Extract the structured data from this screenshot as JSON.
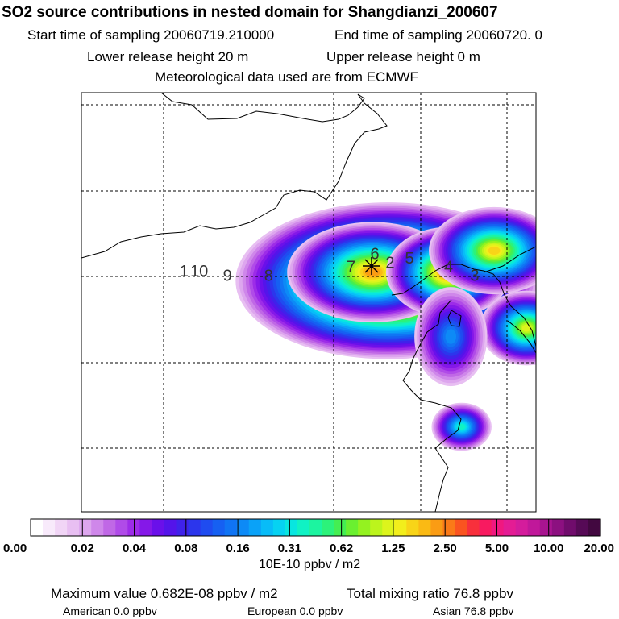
{
  "header": {
    "title": "SO2 source contributions in nested domain for Shangdianzi_200607",
    "start_time": "Start time of sampling 20060719.210000",
    "end_time": "End time of sampling 20060720.     0",
    "lower_height": "Lower release height   20 m",
    "upper_height": "Upper release height    0 m",
    "met_data": "Meteorological data used are from ECMWF"
  },
  "chart_data": {
    "type": "heatmap",
    "title": "SO2 source contributions in nested domain for Shangdianzi_200607",
    "colorbar": {
      "unit_label": "10E-10 ppbv / m2",
      "tick_labels": [
        "0.00",
        "0.02",
        "0.04",
        "0.08",
        "0.16",
        "0.31",
        "0.62",
        "1.25",
        "2.50",
        "5.00",
        "10.00",
        "20.00"
      ],
      "colors": [
        "#ffffff",
        "#f8eafb",
        "#f1d5f6",
        "#e8bff2",
        "#dda6ee",
        "#cf87ea",
        "#c068e6",
        "#b04be8",
        "#9d2ce8",
        "#8518e8",
        "#6a10ea",
        "#5414ea",
        "#3f22ea",
        "#2c36ec",
        "#1f4cf0",
        "#1660f2",
        "#1074f4",
        "#0d8af6",
        "#0aa2f8",
        "#08bcf8",
        "#06d2f2",
        "#08e6e0",
        "#10f2c4",
        "#1cf4a0",
        "#2cf27a",
        "#44ee52",
        "#6af030",
        "#94f220",
        "#bcf41c",
        "#dcf41c",
        "#f2ee1c",
        "#f8d418",
        "#faba14",
        "#fa9c14",
        "#fa7a18",
        "#fa5420",
        "#f8303c",
        "#f81a60",
        "#f01880",
        "#e41c94",
        "#d41c9c",
        "#c0189a",
        "#a81490",
        "#8c1080",
        "#700c6c",
        "#560a56",
        "#420840"
      ]
    },
    "trajectory_labels": [
      {
        "label": "1",
        "lon": 105.1,
        "lat": 40.0
      },
      {
        "label": "10",
        "lon": 105.8,
        "lat": 40.0
      },
      {
        "label": "9",
        "lon": 107.1,
        "lat": 39.9
      },
      {
        "label": "8",
        "lon": 109.0,
        "lat": 39.9
      },
      {
        "label": "7",
        "lon": 112.8,
        "lat": 40.1
      },
      {
        "label": "6",
        "lon": 113.9,
        "lat": 40.4
      },
      {
        "label": "5",
        "lon": 115.5,
        "lat": 40.3
      },
      {
        "label": "4",
        "lon": 117.3,
        "lat": 40.1
      },
      {
        "label": "3",
        "lon": 118.5,
        "lat": 39.9
      },
      {
        "label": "2",
        "lon": 114.6,
        "lat": 40.2
      }
    ],
    "receptor": {
      "name": "Shangdianzi",
      "lon": 114.4,
      "lat": 40.2
    },
    "grid": {
      "lon_lines": [
        108,
        112,
        116,
        120
      ],
      "lat_lines": [
        44,
        42,
        40,
        38,
        36
      ]
    },
    "plumes": [
      {
        "lon": 114.5,
        "lat": 39.9,
        "level": 45
      },
      {
        "lon": 113.8,
        "lat": 40.1,
        "level": 33
      },
      {
        "lon": 117.3,
        "lat": 40.1,
        "level": 35
      },
      {
        "lon": 119.4,
        "lat": 40.6,
        "level": 31
      },
      {
        "lon": 120.9,
        "lat": 38.8,
        "level": 29
      },
      {
        "lon": 117.4,
        "lat": 38.6,
        "level": 17
      },
      {
        "lon": 117.9,
        "lat": 36.5,
        "level": 22
      }
    ]
  },
  "footer": {
    "max_value": "Maximum value  0.682E-08 ppbv / m2",
    "total_ratio": "Total mixing ratio      76.8 ppbv",
    "american": "American      0.0 ppbv",
    "european": "European      0.0 ppbv",
    "asian": "Asian      76.8 ppbv"
  }
}
